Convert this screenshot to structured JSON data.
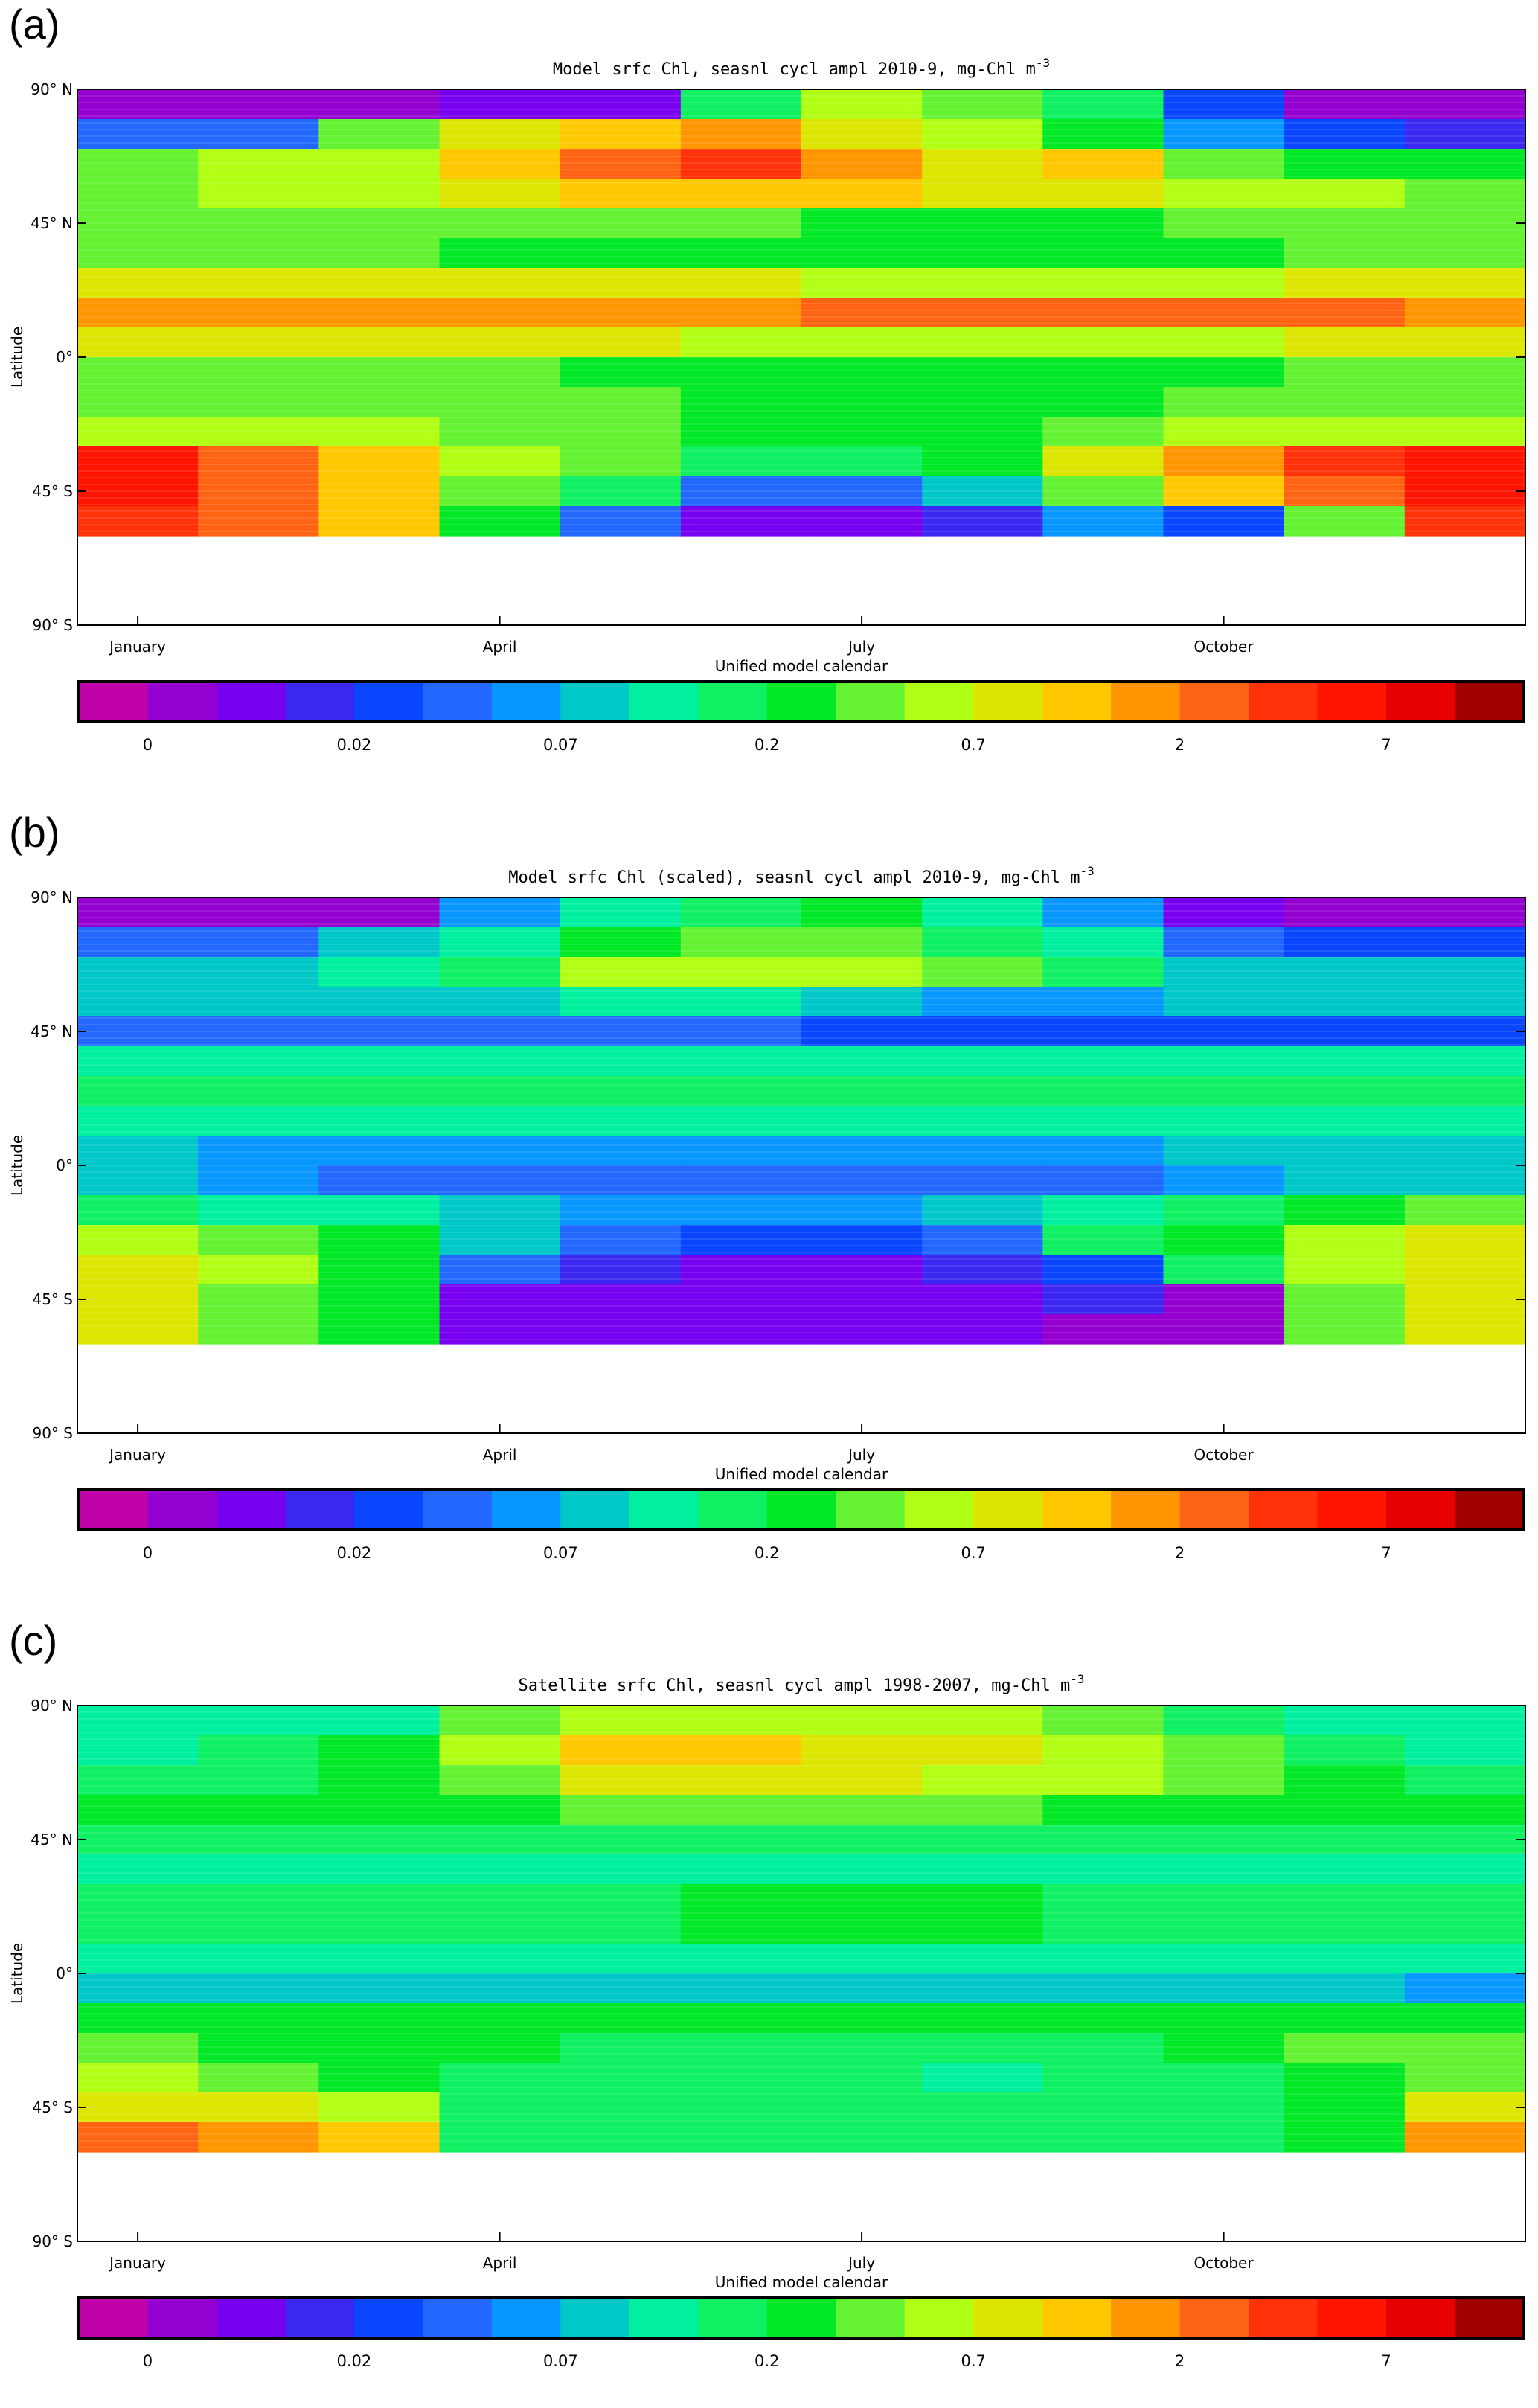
{
  "palette": [
    "#c000a8",
    "#9400d0",
    "#7800f0",
    "#3c28f0",
    "#0a46ff",
    "#2268ff",
    "#0896ff",
    "#00c8c8",
    "#00f0a0",
    "#0ff062",
    "#00e826",
    "#64f232",
    "#b0ff14",
    "#dce600",
    "#ffc800",
    "#ff9600",
    "#ff6414",
    "#ff320a",
    "#ff1400",
    "#e60000",
    "#a00000"
  ],
  "chart_data": [
    {
      "panel_label": "(a)",
      "type": "heatmap",
      "title": "Model srfc Chl, seasnl cycl ampl 2010-9, mg-Chl m",
      "title_superscript": "-3",
      "xlabel": "Unified model calendar",
      "ylabel": "Latitude",
      "x_ticks": [
        "January",
        "April",
        "July",
        "October"
      ],
      "y_ticks": [
        "90° N",
        "45° N",
        "0°",
        "45° S",
        "90° S"
      ],
      "months": [
        "Jan",
        "Feb",
        "Mar",
        "Apr",
        "May",
        "Jun",
        "Jul",
        "Aug",
        "Sep",
        "Oct",
        "Nov",
        "Dec"
      ],
      "lat_edges": [
        90,
        80,
        70,
        60,
        50,
        40,
        30,
        20,
        10,
        0,
        -10,
        -20,
        -30,
        -40,
        -50,
        -60,
        -70,
        -80
      ],
      "levels": [
        [
          1,
          1,
          1,
          2,
          2,
          9,
          12,
          11,
          9,
          4,
          1,
          1
        ],
        [
          5,
          5,
          11,
          13,
          14,
          15,
          13,
          12,
          10,
          6,
          4,
          3
        ],
        [
          11,
          12,
          12,
          14,
          16,
          17,
          15,
          13,
          14,
          11,
          10,
          10
        ],
        [
          11,
          12,
          12,
          13,
          14,
          14,
          14,
          13,
          13,
          12,
          12,
          11
        ],
        [
          11,
          11,
          11,
          11,
          11,
          11,
          10,
          10,
          10,
          11,
          11,
          11
        ],
        [
          11,
          11,
          11,
          10,
          10,
          10,
          10,
          10,
          10,
          10,
          11,
          11
        ],
        [
          13,
          13,
          13,
          13,
          13,
          13,
          12,
          12,
          12,
          12,
          13,
          13
        ],
        [
          15,
          15,
          15,
          15,
          15,
          15,
          16,
          16,
          16,
          16,
          16,
          15
        ],
        [
          13,
          13,
          13,
          13,
          13,
          12,
          12,
          12,
          12,
          12,
          13,
          13
        ],
        [
          11,
          11,
          11,
          11,
          10,
          10,
          10,
          10,
          10,
          10,
          11,
          11
        ],
        [
          11,
          11,
          11,
          11,
          11,
          10,
          10,
          10,
          10,
          11,
          11,
          11
        ],
        [
          12,
          12,
          12,
          11,
          11,
          10,
          10,
          10,
          11,
          12,
          12,
          12
        ],
        [
          18,
          16,
          14,
          12,
          11,
          9,
          9,
          10,
          13,
          15,
          17,
          18
        ],
        [
          18,
          16,
          14,
          11,
          9,
          5,
          5,
          7,
          11,
          14,
          16,
          18
        ],
        [
          17,
          16,
          14,
          10,
          5,
          2,
          2,
          3,
          6,
          4,
          11,
          17
        ]
      ],
      "colorbar_ticks": [
        "0",
        "0.02",
        "0.07",
        "0.2",
        "0.7",
        "2",
        "7"
      ]
    },
    {
      "panel_label": "(b)",
      "type": "heatmap",
      "title": "Model srfc Chl (scaled), seasnl cycl ampl 2010-9, mg-Chl m",
      "title_superscript": "-3",
      "xlabel": "Unified model calendar",
      "ylabel": "Latitude",
      "x_ticks": [
        "January",
        "April",
        "July",
        "October"
      ],
      "y_ticks": [
        "90° N",
        "45° N",
        "0°",
        "45° S",
        "90° S"
      ],
      "months": [
        "Jan",
        "Feb",
        "Mar",
        "Apr",
        "May",
        "Jun",
        "Jul",
        "Aug",
        "Sep",
        "Oct",
        "Nov",
        "Dec"
      ],
      "lat_edges": [
        90,
        80,
        70,
        60,
        50,
        40,
        30,
        20,
        10,
        0,
        -10,
        -20,
        -30,
        -40,
        -50,
        -60,
        -70,
        -80
      ],
      "levels": [
        [
          1,
          1,
          1,
          6,
          8,
          9,
          10,
          8,
          6,
          2,
          1,
          1
        ],
        [
          5,
          5,
          7,
          8,
          10,
          11,
          11,
          9,
          8,
          5,
          4,
          4
        ],
        [
          7,
          7,
          8,
          9,
          12,
          12,
          12,
          11,
          9,
          7,
          7,
          7
        ],
        [
          7,
          7,
          7,
          7,
          8,
          8,
          7,
          6,
          6,
          7,
          7,
          7
        ],
        [
          5,
          5,
          5,
          5,
          5,
          5,
          4,
          4,
          4,
          4,
          4,
          4
        ],
        [
          8,
          8,
          8,
          8,
          8,
          8,
          8,
          8,
          8,
          8,
          8,
          8
        ],
        [
          9,
          9,
          9,
          9,
          9,
          9,
          9,
          9,
          9,
          9,
          9,
          9
        ],
        [
          8,
          8,
          8,
          8,
          8,
          8,
          8,
          8,
          8,
          8,
          8,
          8
        ],
        [
          7,
          6,
          6,
          6,
          6,
          6,
          6,
          6,
          6,
          7,
          7,
          7
        ],
        [
          7,
          6,
          5,
          5,
          5,
          5,
          5,
          5,
          5,
          6,
          7,
          7
        ],
        [
          9,
          8,
          8,
          7,
          6,
          6,
          6,
          7,
          8,
          9,
          10,
          11
        ],
        [
          12,
          11,
          10,
          7,
          5,
          4,
          4,
          5,
          9,
          10,
          12,
          13
        ],
        [
          13,
          12,
          10,
          5,
          3,
          2,
          2,
          3,
          4,
          9,
          12,
          13
        ],
        [
          13,
          11,
          10,
          2,
          2,
          2,
          2,
          2,
          3,
          1,
          11,
          13
        ],
        [
          13,
          11,
          10,
          2,
          2,
          2,
          2,
          2,
          1,
          1,
          11,
          13
        ]
      ],
      "colorbar_ticks": [
        "0",
        "0.02",
        "0.07",
        "0.2",
        "0.7",
        "2",
        "7"
      ]
    },
    {
      "panel_label": "(c)",
      "type": "heatmap",
      "title": "Satellite srfc Chl, seasnl cycl ampl 1998-2007, mg-Chl m",
      "title_superscript": "-3",
      "xlabel": "Unified model calendar",
      "ylabel": "Latitude",
      "x_ticks": [
        "January",
        "April",
        "July",
        "October"
      ],
      "y_ticks": [
        "90° N",
        "45° N",
        "0°",
        "45° S",
        "90° S"
      ],
      "months": [
        "Jan",
        "Feb",
        "Mar",
        "Apr",
        "May",
        "Jun",
        "Jul",
        "Aug",
        "Sep",
        "Oct",
        "Nov",
        "Dec"
      ],
      "lat_edges": [
        90,
        80,
        70,
        60,
        50,
        40,
        30,
        20,
        10,
        0,
        -10,
        -20,
        -30,
        -40,
        -50,
        -60,
        -70,
        -80
      ],
      "levels": [
        [
          8,
          8,
          8,
          11,
          12,
          12,
          12,
          12,
          11,
          9,
          8,
          8
        ],
        [
          8,
          9,
          10,
          12,
          14,
          14,
          13,
          13,
          12,
          11,
          9,
          8
        ],
        [
          9,
          9,
          10,
          11,
          13,
          13,
          13,
          12,
          12,
          11,
          10,
          9
        ],
        [
          10,
          10,
          10,
          10,
          11,
          11,
          11,
          11,
          10,
          10,
          10,
          10
        ],
        [
          9,
          9,
          9,
          9,
          9,
          9,
          9,
          9,
          9,
          9,
          9,
          9
        ],
        [
          8,
          8,
          8,
          8,
          8,
          8,
          8,
          8,
          8,
          8,
          8,
          8
        ],
        [
          9,
          9,
          9,
          9,
          9,
          10,
          10,
          10,
          9,
          9,
          9,
          9
        ],
        [
          9,
          9,
          9,
          9,
          9,
          10,
          10,
          10,
          9,
          9,
          9,
          9
        ],
        [
          8,
          8,
          8,
          8,
          8,
          8,
          8,
          8,
          8,
          8,
          8,
          8
        ],
        [
          7,
          7,
          7,
          7,
          7,
          7,
          7,
          7,
          7,
          7,
          7,
          6
        ],
        [
          10,
          10,
          10,
          10,
          10,
          10,
          10,
          10,
          10,
          10,
          10,
          10
        ],
        [
          11,
          10,
          10,
          10,
          9,
          9,
          9,
          9,
          9,
          10,
          11,
          11
        ],
        [
          12,
          11,
          10,
          9,
          9,
          9,
          9,
          8,
          9,
          9,
          10,
          11
        ],
        [
          13,
          13,
          12,
          9,
          9,
          9,
          9,
          9,
          9,
          9,
          10,
          13
        ],
        [
          16,
          15,
          14,
          9,
          9,
          9,
          9,
          9,
          9,
          9,
          10,
          15
        ]
      ],
      "colorbar_ticks": [
        "0",
        "0.02",
        "0.07",
        "0.2",
        "0.7",
        "2",
        "7"
      ]
    }
  ]
}
